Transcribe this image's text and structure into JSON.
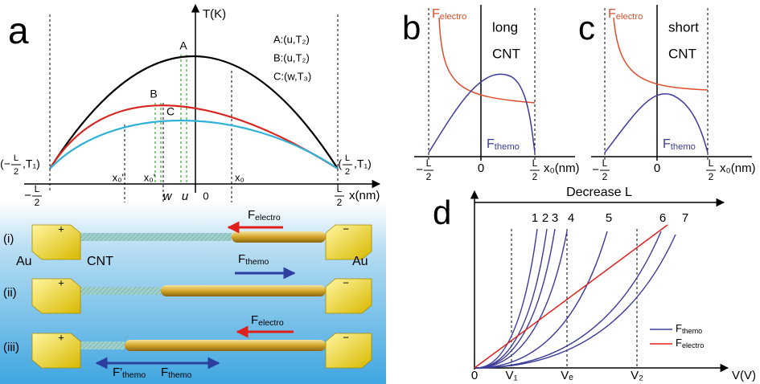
{
  "panel_a": {
    "label": "a",
    "y_axis_title": "T(K)",
    "x_axis_unit": "x(nm)",
    "key": [
      "A:(u,T₂)",
      "B:(u,T₂)",
      "C:(w,T₃)"
    ],
    "points": [
      "A",
      "B",
      "C"
    ],
    "x_ends": [
      {
        "sign": "−",
        "num": "L",
        "den": "2"
      },
      {
        "num": "L",
        "den": "2"
      }
    ],
    "end_points": [
      {
        "open": "(−",
        "num": "L",
        "den": "2",
        "close": ",T₁)"
      },
      {
        "open": "(",
        "num": "L",
        "den": "2",
        "close": ",T₁)"
      }
    ],
    "positions": [
      "x₀''",
      "x₀'",
      "w",
      "u",
      "0",
      "x₀"
    ]
  },
  "device": {
    "rows": [
      "(i)",
      "(ii)",
      "(iii)"
    ],
    "electrodes": [
      "Au",
      "Au"
    ],
    "tube": "CNT",
    "plus": "+",
    "minus": "−",
    "forces_i": [
      {
        "symbol": "F",
        "sub": "electro"
      },
      {
        "symbol": "F",
        "sub": "themo"
      }
    ],
    "forces_iii": [
      {
        "symbol": "F",
        "sub": "electro"
      },
      {
        "symbol": "F'",
        "sub": "themo"
      },
      {
        "symbol": "F",
        "sub": "themo"
      }
    ]
  },
  "panel_b": {
    "label": "b",
    "note": [
      "long",
      "CNT"
    ],
    "force_electro": {
      "symbol": "F",
      "sub": "electro"
    },
    "force_themo": {
      "symbol": "F",
      "sub": "themo"
    },
    "x_ticks": [
      {
        "sign": "−",
        "num": "L",
        "den": "2"
      },
      "0",
      {
        "num": "L",
        "den": "2"
      }
    ],
    "x_axis_unit": "x₀(nm)"
  },
  "panel_c": {
    "label": "c",
    "note": [
      "short",
      "CNT"
    ],
    "force_electro": {
      "symbol": "F",
      "sub": "electro"
    },
    "force_themo": {
      "symbol": "F",
      "sub": "themo"
    },
    "x_ticks": [
      {
        "sign": "−",
        "num": "L",
        "den": "2"
      },
      "0",
      {
        "num": "L",
        "den": "2"
      }
    ],
    "x_axis_unit": "x₀(nm)"
  },
  "panel_d": {
    "label": "d",
    "arrow_label": "Decrease L",
    "curve_labels": [
      "1",
      "2",
      "3",
      "4",
      "5",
      "6",
      "7"
    ],
    "x_ticks": [
      "0",
      "V₁",
      "Vₑ",
      "V₂"
    ],
    "x_axis_unit": "V(V)",
    "legend": [
      {
        "symbol": "F",
        "sub": "themo"
      },
      {
        "symbol": "F",
        "sub": "electro"
      }
    ]
  }
}
